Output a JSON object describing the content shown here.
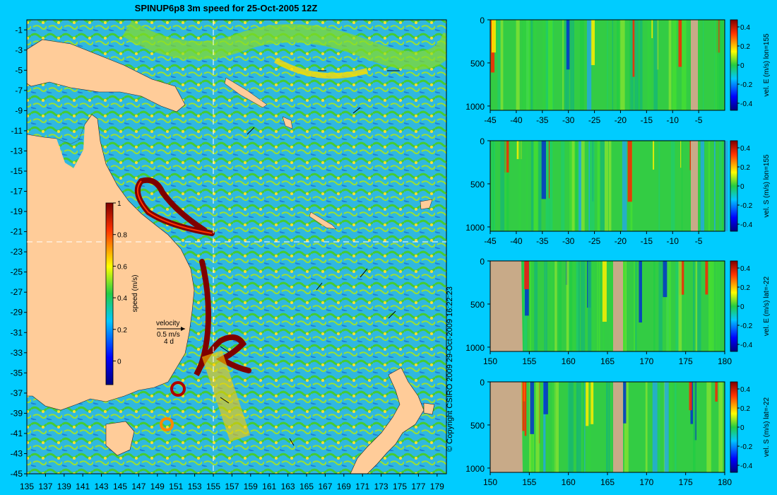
{
  "title": "SPINUP6p8 3m speed for 25-Oct-2005 12Z",
  "copyright": "© Copyright CSIRO 2009   29-Oct-2009 16:22:23",
  "chart_data": [
    {
      "type": "heatmap",
      "title": "SPINUP6p8 3m speed for 25-Oct-2005 12Z",
      "x_ticks": [
        135,
        137,
        139,
        141,
        143,
        145,
        147,
        149,
        151,
        153,
        155,
        157,
        159,
        161,
        163,
        165,
        167,
        169,
        171,
        173,
        175,
        177,
        179
      ],
      "y_ticks": [
        -1,
        -3,
        -5,
        -7,
        -9,
        -11,
        -13,
        -15,
        -17,
        -19,
        -21,
        -23,
        -25,
        -27,
        -29,
        -31,
        -33,
        -35,
        -37,
        -39,
        -41,
        -43,
        -45
      ],
      "xlim": [
        135,
        180
      ],
      "ylim": [
        -45,
        0
      ],
      "section_lon": 155,
      "section_lat": -22,
      "colorbar": {
        "label": "speed (m/s)",
        "ticks": [
          0,
          0.2,
          0.4,
          0.6,
          0.8,
          1
        ],
        "range": [
          -0.15,
          1
        ]
      },
      "velocity_key": {
        "label": "velocity",
        "scale": "0.5 m/s",
        "days": "4 d"
      }
    },
    {
      "type": "heatmap",
      "x_ticks": [
        -45,
        -40,
        -35,
        -30,
        -25,
        -20,
        -15,
        -10,
        -5
      ],
      "xlim": [
        -45,
        0
      ],
      "y_ticks": [
        0,
        500,
        1000
      ],
      "ylim": [
        1050,
        0
      ],
      "colorbar": {
        "label": "vel. E (m/s) lon=155",
        "ticks": [
          0.4,
          0.2,
          0,
          -0.2,
          -0.4
        ]
      }
    },
    {
      "type": "heatmap",
      "x_ticks": [
        -45,
        -40,
        -35,
        -30,
        -25,
        -20,
        -15,
        -10,
        -5
      ],
      "xlim": [
        -45,
        0
      ],
      "y_ticks": [
        0,
        500,
        1000
      ],
      "ylim": [
        1050,
        0
      ],
      "colorbar": {
        "label": "vel. S (m/s) lon=155",
        "ticks": [
          0.4,
          0.2,
          0,
          -0.2,
          -0.4
        ]
      }
    },
    {
      "type": "heatmap",
      "x_ticks": [
        150,
        155,
        160,
        165,
        170,
        175,
        180
      ],
      "xlim": [
        150,
        180
      ],
      "y_ticks": [
        0,
        500,
        1000
      ],
      "ylim": [
        1050,
        0
      ],
      "colorbar": {
        "label": "vel. E (m/s) lat=-22",
        "ticks": [
          0.4,
          0.2,
          0,
          -0.2,
          -0.4
        ]
      }
    },
    {
      "type": "heatmap",
      "x_ticks": [
        150,
        155,
        160,
        165,
        170,
        175,
        180
      ],
      "xlim": [
        150,
        180
      ],
      "y_ticks": [
        0,
        500,
        1000
      ],
      "ylim": [
        1050,
        0
      ],
      "colorbar": {
        "label": "vel. S (m/s) lat=-22",
        "ticks": [
          0.4,
          0.2,
          0,
          -0.2,
          -0.4
        ]
      }
    }
  ]
}
